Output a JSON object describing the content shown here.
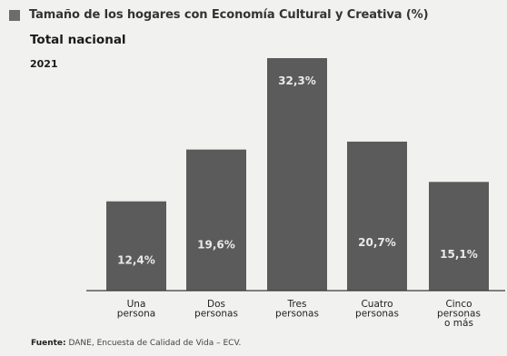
{
  "header": {
    "title": "Tamaño de los hogares con Economía Cultural y Creativa (%)",
    "subtitle": "Total nacional",
    "year": "2021"
  },
  "footer": {
    "source_label": "Fuente:",
    "source_text": "DANE, Encuesta de Calidad de Vida – ECV."
  },
  "colors": {
    "bar": "#5b5b5b",
    "axis": "#3a3a3a",
    "label_on_bar": "#e9e9e9"
  },
  "chart_data": {
    "type": "bar",
    "title": "Tamaño de los hogares con Economía Cultural y Creativa (%)",
    "categories": [
      [
        "Una",
        "persona"
      ],
      [
        "Dos",
        "personas"
      ],
      [
        "Tres",
        "personas"
      ],
      [
        "Cuatro",
        "personas"
      ],
      [
        "Cinco",
        "personas",
        "o más"
      ]
    ],
    "values": [
      12.4,
      19.6,
      32.3,
      20.7,
      15.1
    ],
    "data_labels": [
      "12,4%",
      "19,6%",
      "32,3%",
      "20,7%",
      "15,1%"
    ],
    "ylim": [
      0,
      32.3
    ],
    "grid": false,
    "legend": "none"
  }
}
